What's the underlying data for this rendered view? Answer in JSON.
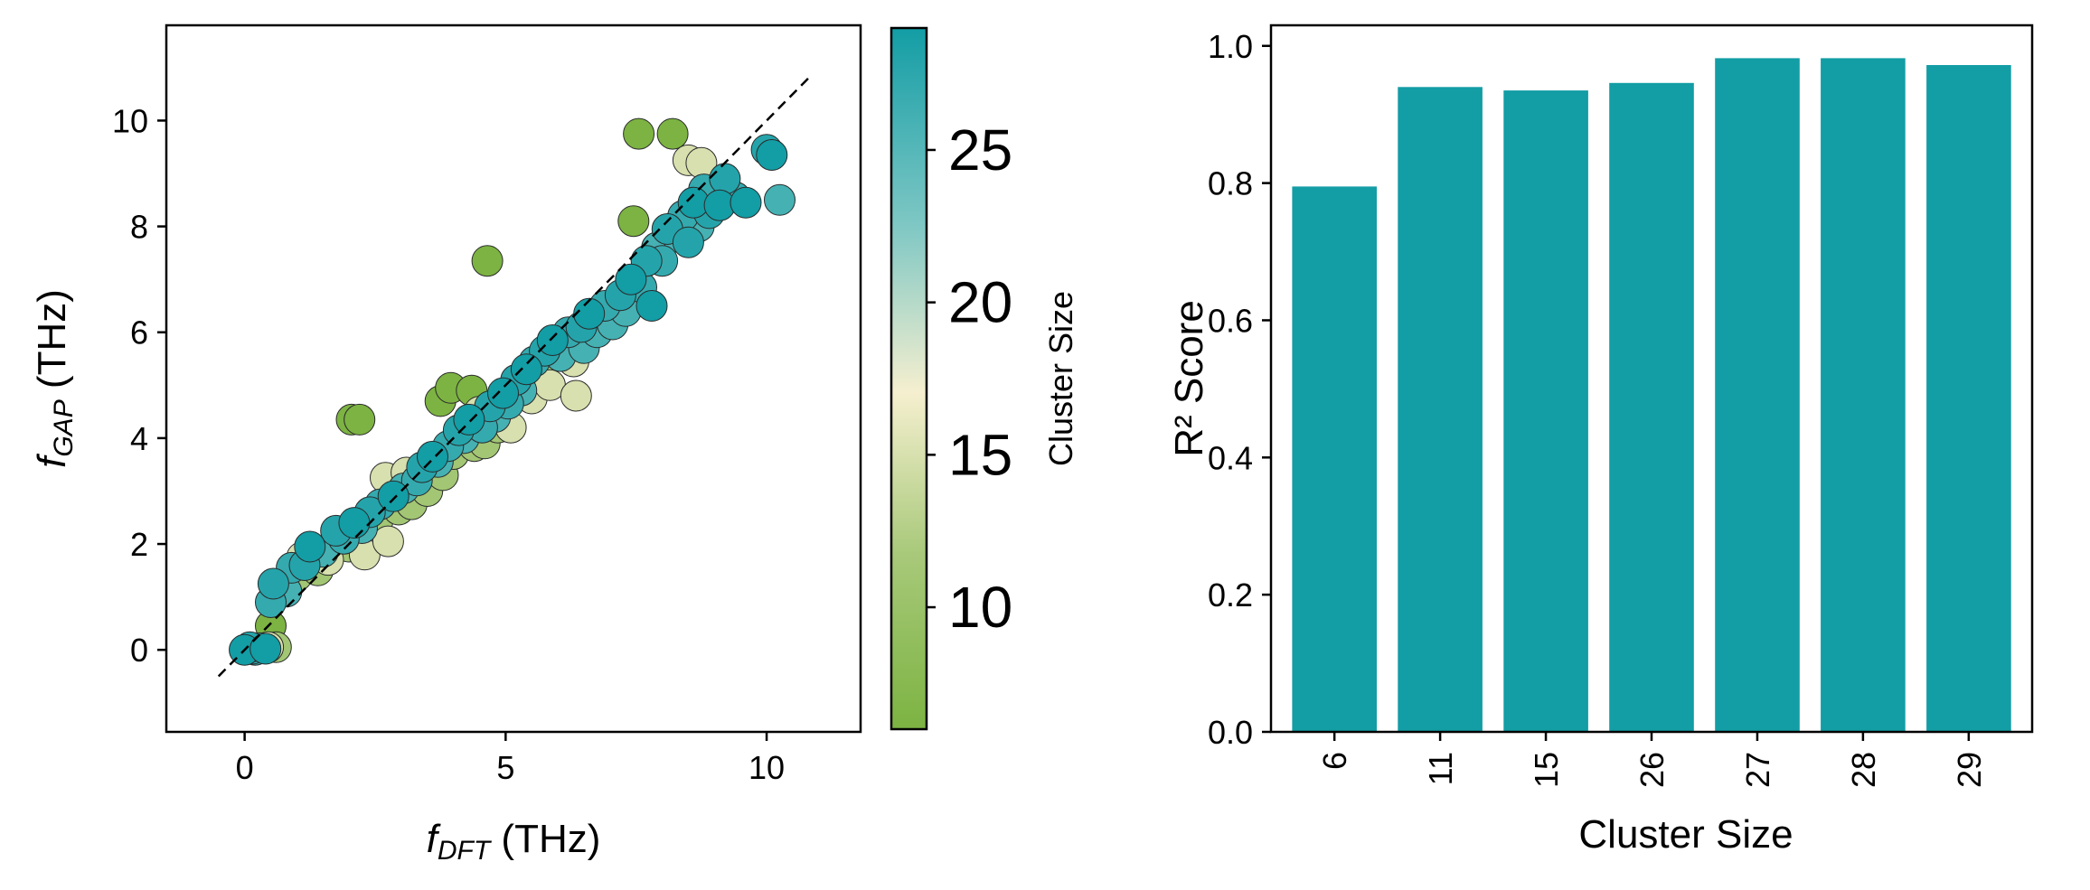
{
  "colors": {
    "bar": "#139da5",
    "colormap": [
      "#7cb342",
      "#a8c97a",
      "#f5efcf",
      "#7ec7c4",
      "#139da5"
    ],
    "identity_line": "#000000"
  },
  "chart_data": [
    {
      "type": "scatter",
      "xlabel_main": "f",
      "xlabel_sub": "DFT",
      "xlabel_unit": " (THz)",
      "ylabel_main": "f",
      "ylabel_sub": "GAP",
      "ylabel_unit": " (THz)",
      "xlim": [
        -1.5,
        11.8
      ],
      "ylim": [
        -1.55,
        11.8
      ],
      "xticks": [
        "0",
        "5",
        "10"
      ],
      "xtick_values": [
        0,
        5,
        10
      ],
      "yticks": [
        "0",
        "2",
        "4",
        "6",
        "8",
        "10"
      ],
      "ytick_values": [
        0,
        2,
        4,
        6,
        8,
        10
      ],
      "identity_line": [
        [
          -0.5,
          -0.5
        ],
        [
          10.8,
          10.8
        ]
      ],
      "colorbar": {
        "label": "Cluster Size",
        "range": [
          6,
          29
        ],
        "ticks": [
          "10",
          "15",
          "20",
          "25"
        ],
        "tick_values": [
          10,
          15,
          20,
          25
        ]
      },
      "points": [
        [
          0.0,
          0.0,
          29
        ],
        [
          0.1,
          0.05,
          28
        ],
        [
          0.2,
          0.0,
          27
        ],
        [
          0.3,
          0.03,
          26
        ],
        [
          0.45,
          0.05,
          15
        ],
        [
          0.6,
          0.05,
          11
        ],
        [
          0.5,
          0.45,
          6
        ],
        [
          0.4,
          0.02,
          29
        ],
        [
          0.15,
          0.02,
          27
        ],
        [
          0.5,
          0.9,
          27
        ],
        [
          0.55,
          1.25,
          28
        ],
        [
          0.8,
          1.1,
          26
        ],
        [
          0.9,
          1.55,
          27
        ],
        [
          1.0,
          1.4,
          11
        ],
        [
          1.1,
          1.75,
          15
        ],
        [
          1.15,
          1.6,
          28
        ],
        [
          1.25,
          1.95,
          29
        ],
        [
          1.4,
          1.5,
          11
        ],
        [
          1.5,
          1.85,
          26
        ],
        [
          1.6,
          1.7,
          15
        ],
        [
          1.75,
          2.25,
          28
        ],
        [
          1.9,
          2.1,
          27
        ],
        [
          2.0,
          1.95,
          11
        ],
        [
          2.05,
          4.35,
          6
        ],
        [
          2.2,
          4.35,
          6
        ],
        [
          2.1,
          2.4,
          29
        ],
        [
          2.25,
          2.3,
          26
        ],
        [
          2.3,
          1.8,
          15
        ],
        [
          2.4,
          2.6,
          28
        ],
        [
          2.55,
          2.45,
          11
        ],
        [
          2.6,
          2.75,
          27
        ],
        [
          2.7,
          3.25,
          15
        ],
        [
          2.75,
          2.05,
          15
        ],
        [
          2.85,
          2.9,
          29
        ],
        [
          2.95,
          2.65,
          11
        ],
        [
          3.05,
          3.05,
          26
        ],
        [
          3.1,
          3.35,
          15
        ],
        [
          3.2,
          2.75,
          11
        ],
        [
          3.3,
          3.2,
          27
        ],
        [
          3.4,
          3.45,
          28
        ],
        [
          3.5,
          3.0,
          11
        ],
        [
          3.6,
          3.65,
          29
        ],
        [
          3.7,
          3.55,
          26
        ],
        [
          3.75,
          4.7,
          6
        ],
        [
          3.8,
          3.3,
          11
        ],
        [
          3.95,
          4.95,
          6
        ],
        [
          3.9,
          3.85,
          27
        ],
        [
          4.0,
          3.7,
          11
        ],
        [
          4.1,
          4.15,
          28
        ],
        [
          4.2,
          4.0,
          26
        ],
        [
          4.3,
          4.35,
          29
        ],
        [
          4.35,
          4.9,
          6
        ],
        [
          4.4,
          3.85,
          11
        ],
        [
          4.5,
          4.5,
          15
        ],
        [
          4.55,
          4.2,
          27
        ],
        [
          4.6,
          3.9,
          11
        ],
        [
          4.65,
          7.35,
          6
        ],
        [
          4.7,
          4.6,
          28
        ],
        [
          4.8,
          4.4,
          26
        ],
        [
          4.85,
          4.2,
          11
        ],
        [
          4.95,
          4.85,
          29
        ],
        [
          5.05,
          4.65,
          27
        ],
        [
          5.1,
          4.2,
          15
        ],
        [
          5.2,
          5.1,
          28
        ],
        [
          5.3,
          4.9,
          26
        ],
        [
          5.4,
          5.3,
          29
        ],
        [
          5.5,
          4.75,
          15
        ],
        [
          5.55,
          5.45,
          27
        ],
        [
          5.65,
          5.2,
          11
        ],
        [
          5.75,
          5.65,
          28
        ],
        [
          5.85,
          5.0,
          15
        ],
        [
          5.9,
          5.85,
          29
        ],
        [
          6.05,
          5.55,
          26
        ],
        [
          6.2,
          6.0,
          27
        ],
        [
          6.3,
          5.45,
          15
        ],
        [
          6.35,
          4.8,
          15
        ],
        [
          6.45,
          6.1,
          28
        ],
        [
          6.5,
          5.7,
          26
        ],
        [
          6.6,
          6.35,
          29
        ],
        [
          6.75,
          6.0,
          26
        ],
        [
          6.9,
          6.5,
          27
        ],
        [
          7.05,
          6.15,
          26
        ],
        [
          7.2,
          6.7,
          28
        ],
        [
          7.3,
          6.4,
          26
        ],
        [
          7.4,
          7.0,
          29
        ],
        [
          7.45,
          8.1,
          6
        ],
        [
          7.55,
          9.75,
          6
        ],
        [
          7.6,
          6.85,
          27
        ],
        [
          7.7,
          7.35,
          28
        ],
        [
          7.8,
          6.5,
          29
        ],
        [
          7.9,
          7.6,
          26
        ],
        [
          8.0,
          7.35,
          27
        ],
        [
          8.1,
          7.95,
          28
        ],
        [
          8.2,
          9.75,
          6
        ],
        [
          8.3,
          7.8,
          26
        ],
        [
          8.4,
          8.2,
          27
        ],
        [
          8.5,
          7.7,
          28
        ],
        [
          8.5,
          9.25,
          15
        ],
        [
          8.6,
          8.45,
          29
        ],
        [
          8.7,
          8.0,
          26
        ],
        [
          8.75,
          9.2,
          15
        ],
        [
          8.8,
          8.7,
          27
        ],
        [
          8.9,
          8.25,
          28
        ],
        [
          9.0,
          8.6,
          26
        ],
        [
          9.1,
          8.4,
          29
        ],
        [
          9.2,
          8.9,
          28
        ],
        [
          9.4,
          8.55,
          27
        ],
        [
          9.6,
          8.45,
          29
        ],
        [
          10.0,
          9.45,
          28
        ],
        [
          10.1,
          9.35,
          29
        ],
        [
          10.25,
          8.5,
          26
        ]
      ]
    },
    {
      "type": "bar",
      "categories": [
        "6",
        "11",
        "15",
        "26",
        "27",
        "28",
        "29"
      ],
      "values": [
        0.795,
        0.94,
        0.935,
        0.946,
        0.982,
        0.982,
        0.972
      ],
      "xlabel": "Cluster Size",
      "ylabel": "R² Score",
      "ylim": [
        0,
        1.03
      ],
      "yticks": [
        "0.0",
        "0.2",
        "0.4",
        "0.6",
        "0.8",
        "1.0"
      ],
      "ytick_values": [
        0,
        0.2,
        0.4,
        0.6,
        0.8,
        1.0
      ]
    }
  ]
}
